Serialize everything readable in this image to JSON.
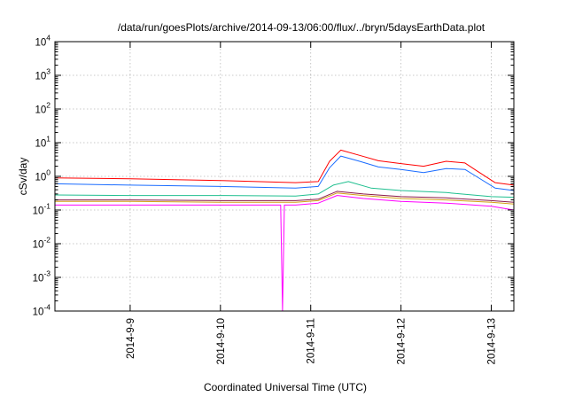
{
  "chart_data": {
    "type": "line",
    "title": "/data/run/goesPlots/archive/2014-09-13/06:00/flux/../bryn/5daysEarthData.plot",
    "xlabel": "Coordinated Universal Time (UTC)",
    "ylabel": "cSv/day",
    "yscale": "log",
    "ylim": [
      0.0001,
      10000
    ],
    "xlim": [
      "2014-09-08 04:00",
      "2014-09-13 06:00"
    ],
    "grid": true,
    "legend": "none",
    "y_ticks": [
      {
        "value": 10000,
        "base": "10",
        "exp": "4"
      },
      {
        "value": 1000,
        "base": "10",
        "exp": "3"
      },
      {
        "value": 100,
        "base": "10",
        "exp": "2"
      },
      {
        "value": 10,
        "base": "10",
        "exp": "1"
      },
      {
        "value": 1,
        "base": "10",
        "exp": "0"
      },
      {
        "value": 0.1,
        "base": "10",
        "exp": "-1"
      },
      {
        "value": 0.01,
        "base": "10",
        "exp": "-2"
      },
      {
        "value": 0.001,
        "base": "10",
        "exp": "-3"
      },
      {
        "value": 0.0001,
        "base": "10",
        "exp": "-4"
      }
    ],
    "x_ticks": [
      {
        "value": "2014-09-09 00:00",
        "label": "2014-9-9"
      },
      {
        "value": "2014-09-10 00:00",
        "label": "2014-9-10"
      },
      {
        "value": "2014-09-11 00:00",
        "label": "2014-9-11"
      },
      {
        "value": "2014-09-12 00:00",
        "label": "2014-9-12"
      },
      {
        "value": "2014-09-13 00:00",
        "label": "2014-9-13"
      }
    ],
    "series": [
      {
        "color": "#ff0000",
        "x": [
          "2014-09-08 04:00",
          "2014-09-09 00:00",
          "2014-09-10 00:00",
          "2014-09-10 20:00",
          "2014-09-11 02:00",
          "2014-09-11 05:00",
          "2014-09-11 08:00",
          "2014-09-11 13:00",
          "2014-09-11 18:00",
          "2014-09-12 00:00",
          "2014-09-12 06:00",
          "2014-09-12 12:00",
          "2014-09-12 17:00",
          "2014-09-12 20:00",
          "2014-09-13 01:00",
          "2014-09-13 06:00"
        ],
        "y": [
          0.9,
          0.85,
          0.75,
          0.65,
          0.7,
          2.8,
          6.0,
          4.2,
          2.9,
          2.4,
          2.0,
          2.8,
          2.5,
          1.5,
          0.65,
          0.55
        ]
      },
      {
        "color": "#1a6cff",
        "x": [
          "2014-09-08 04:00",
          "2014-09-09 00:00",
          "2014-09-10 00:00",
          "2014-09-10 20:00",
          "2014-09-11 02:00",
          "2014-09-11 05:00",
          "2014-09-11 08:00",
          "2014-09-11 13:00",
          "2014-09-11 18:00",
          "2014-09-12 00:00",
          "2014-09-12 06:00",
          "2014-09-12 12:00",
          "2014-09-12 17:00",
          "2014-09-12 20:00",
          "2014-09-13 01:00",
          "2014-09-13 06:00"
        ],
        "y": [
          0.6,
          0.55,
          0.5,
          0.45,
          0.5,
          1.8,
          4.0,
          2.8,
          1.9,
          1.6,
          1.3,
          1.7,
          1.6,
          1.0,
          0.45,
          0.38
        ]
      },
      {
        "color": "#1fbf8f",
        "x": [
          "2014-09-08 04:00",
          "2014-09-09 00:00",
          "2014-09-10 00:00",
          "2014-09-10 20:00",
          "2014-09-11 02:00",
          "2014-09-11 06:00",
          "2014-09-11 10:00",
          "2014-09-11 16:00",
          "2014-09-12 00:00",
          "2014-09-12 12:00",
          "2014-09-13 00:00",
          "2014-09-13 06:00"
        ],
        "y": [
          0.28,
          0.27,
          0.27,
          0.26,
          0.3,
          0.55,
          0.7,
          0.45,
          0.38,
          0.33,
          0.25,
          0.24
        ]
      },
      {
        "color": "#8b1a4a",
        "x": [
          "2014-09-08 04:00",
          "2014-09-09 00:00",
          "2014-09-10 00:00",
          "2014-09-10 20:00",
          "2014-09-11 02:00",
          "2014-09-11 07:00",
          "2014-09-11 14:00",
          "2014-09-12 00:00",
          "2014-09-12 12:00",
          "2014-09-13 00:00",
          "2014-09-13 06:00"
        ],
        "y": [
          0.2,
          0.2,
          0.19,
          0.19,
          0.21,
          0.36,
          0.3,
          0.25,
          0.23,
          0.19,
          0.17
        ]
      },
      {
        "color": "#d4a017",
        "x": [
          "2014-09-08 04:00",
          "2014-09-09 00:00",
          "2014-09-10 00:00",
          "2014-09-10 20:00",
          "2014-09-11 02:00",
          "2014-09-11 07:00",
          "2014-09-11 14:00",
          "2014-09-12 00:00",
          "2014-09-12 12:00",
          "2014-09-13 00:00",
          "2014-09-13 06:00"
        ],
        "y": [
          0.18,
          0.18,
          0.17,
          0.17,
          0.19,
          0.32,
          0.27,
          0.22,
          0.2,
          0.17,
          0.15
        ]
      },
      {
        "color": "#ff00ff",
        "x": [
          "2014-09-08 04:00",
          "2014-09-09 00:00",
          "2014-09-10 00:00",
          "2014-09-10 16:00",
          "2014-09-10 16:30",
          "2014-09-10 17:00",
          "2014-09-10 20:00",
          "2014-09-11 02:00",
          "2014-09-11 07:00",
          "2014-09-11 14:00",
          "2014-09-12 00:00",
          "2014-09-12 12:00",
          "2014-09-13 00:00",
          "2014-09-13 06:00"
        ],
        "y": [
          0.14,
          0.14,
          0.14,
          0.14,
          0.0001,
          0.14,
          0.14,
          0.16,
          0.27,
          0.22,
          0.18,
          0.16,
          0.13,
          0.1
        ]
      }
    ]
  }
}
